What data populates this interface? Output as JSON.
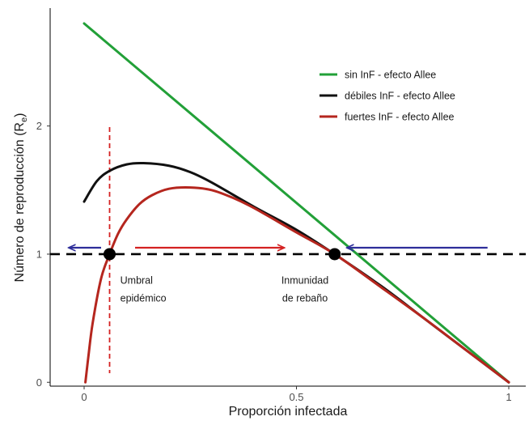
{
  "chart_data": {
    "type": "line",
    "xlabel": "Proporción infectada",
    "ylabel": "Número de reproducción (R",
    "ylabel_subscript": "e",
    "ylabel_close": ")",
    "xlim": [
      -0.08,
      1.04
    ],
    "ylim": [
      -0.03,
      2.92
    ],
    "xticks": [
      {
        "value": 0,
        "label": "0"
      },
      {
        "value": 0.5,
        "label": "0.5"
      },
      {
        "value": 1,
        "label": "1"
      }
    ],
    "yticks": [
      {
        "value": 0,
        "label": "0"
      },
      {
        "value": 1,
        "label": "1"
      },
      {
        "value": 2,
        "label": "2"
      }
    ],
    "grid": false,
    "legend_position": "top-right",
    "series": [
      {
        "name": "sin InF - efecto Allee",
        "color": "#22a038",
        "x": [
          0,
          1
        ],
        "y": [
          2.8,
          0
        ]
      },
      {
        "name": "débiles InF - efecto Allee",
        "color": "#111111",
        "x": [
          0,
          0.03,
          0.06,
          0.1,
          0.14,
          0.2,
          0.25,
          0.3,
          0.4,
          0.5,
          0.59,
          0.7,
          0.8,
          0.9,
          1.0
        ],
        "y": [
          1.41,
          1.57,
          1.65,
          1.7,
          1.71,
          1.69,
          1.64,
          1.56,
          1.37,
          1.19,
          1.0,
          0.75,
          0.5,
          0.25,
          0.0
        ]
      },
      {
        "name": "fuertes InF - efecto Allee",
        "color": "#b5261e",
        "x": [
          0.003,
          0.01,
          0.02,
          0.04,
          0.06,
          0.08,
          0.1,
          0.13,
          0.16,
          0.2,
          0.25,
          0.3,
          0.35,
          0.4,
          0.5,
          0.59,
          0.7,
          0.8,
          0.9,
          1.0
        ],
        "y": [
          0.0,
          0.2,
          0.46,
          0.81,
          1.0,
          1.16,
          1.27,
          1.39,
          1.46,
          1.51,
          1.52,
          1.5,
          1.44,
          1.36,
          1.17,
          1.0,
          0.74,
          0.5,
          0.25,
          0.0
        ]
      }
    ],
    "reference_lines": [
      {
        "orientation": "horizontal",
        "value": 1,
        "color": "#000000",
        "style": "dashed"
      },
      {
        "orientation": "vertical",
        "value": 0.06,
        "color": "#d42222",
        "style": "dashed"
      }
    ],
    "points": [
      {
        "x": 0.06,
        "y": 1.0,
        "color": "#000000"
      },
      {
        "x": 0.59,
        "y": 1.0,
        "color": "#000000"
      }
    ],
    "arrows": [
      {
        "x_from": 0.04,
        "x_to": -0.035,
        "y": 1.05,
        "color": "#2e2e9a"
      },
      {
        "x_from": 0.12,
        "x_to": 0.47,
        "y": 1.05,
        "color": "#d42222"
      },
      {
        "x_from": 0.95,
        "x_to": 0.62,
        "y": 1.05,
        "color": "#2e2e9a"
      }
    ],
    "annotations": [
      {
        "lines": [
          "Umbral",
          "epidémico"
        ],
        "x": 0.085,
        "y": 0.77,
        "align": "start"
      },
      {
        "lines": [
          "Inmunidad",
          "de rebaño"
        ],
        "x": 0.52,
        "y": 0.77,
        "align": "middle"
      }
    ]
  }
}
